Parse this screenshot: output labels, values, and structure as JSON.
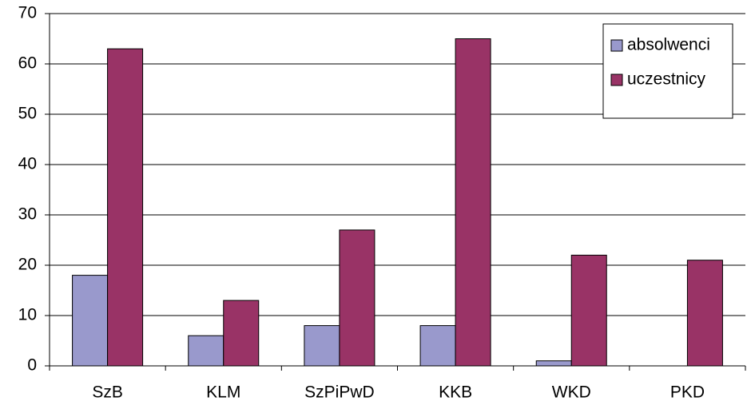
{
  "chart_data": {
    "type": "bar",
    "categories": [
      "SzB",
      "KLM",
      "SzPiPwD",
      "KKB",
      "WKD",
      "PKD"
    ],
    "series": [
      {
        "name": "absolwenci",
        "color": "#9999cc",
        "values": [
          18,
          6,
          8,
          8,
          1,
          0
        ]
      },
      {
        "name": "uczestnicy",
        "color": "#993366",
        "values": [
          63,
          13,
          27,
          65,
          22,
          21
        ]
      }
    ],
    "ylim": [
      0,
      70
    ],
    "yticks": [
      0,
      10,
      20,
      30,
      40,
      50,
      60,
      70
    ],
    "grid": true,
    "legend": "upper right"
  }
}
